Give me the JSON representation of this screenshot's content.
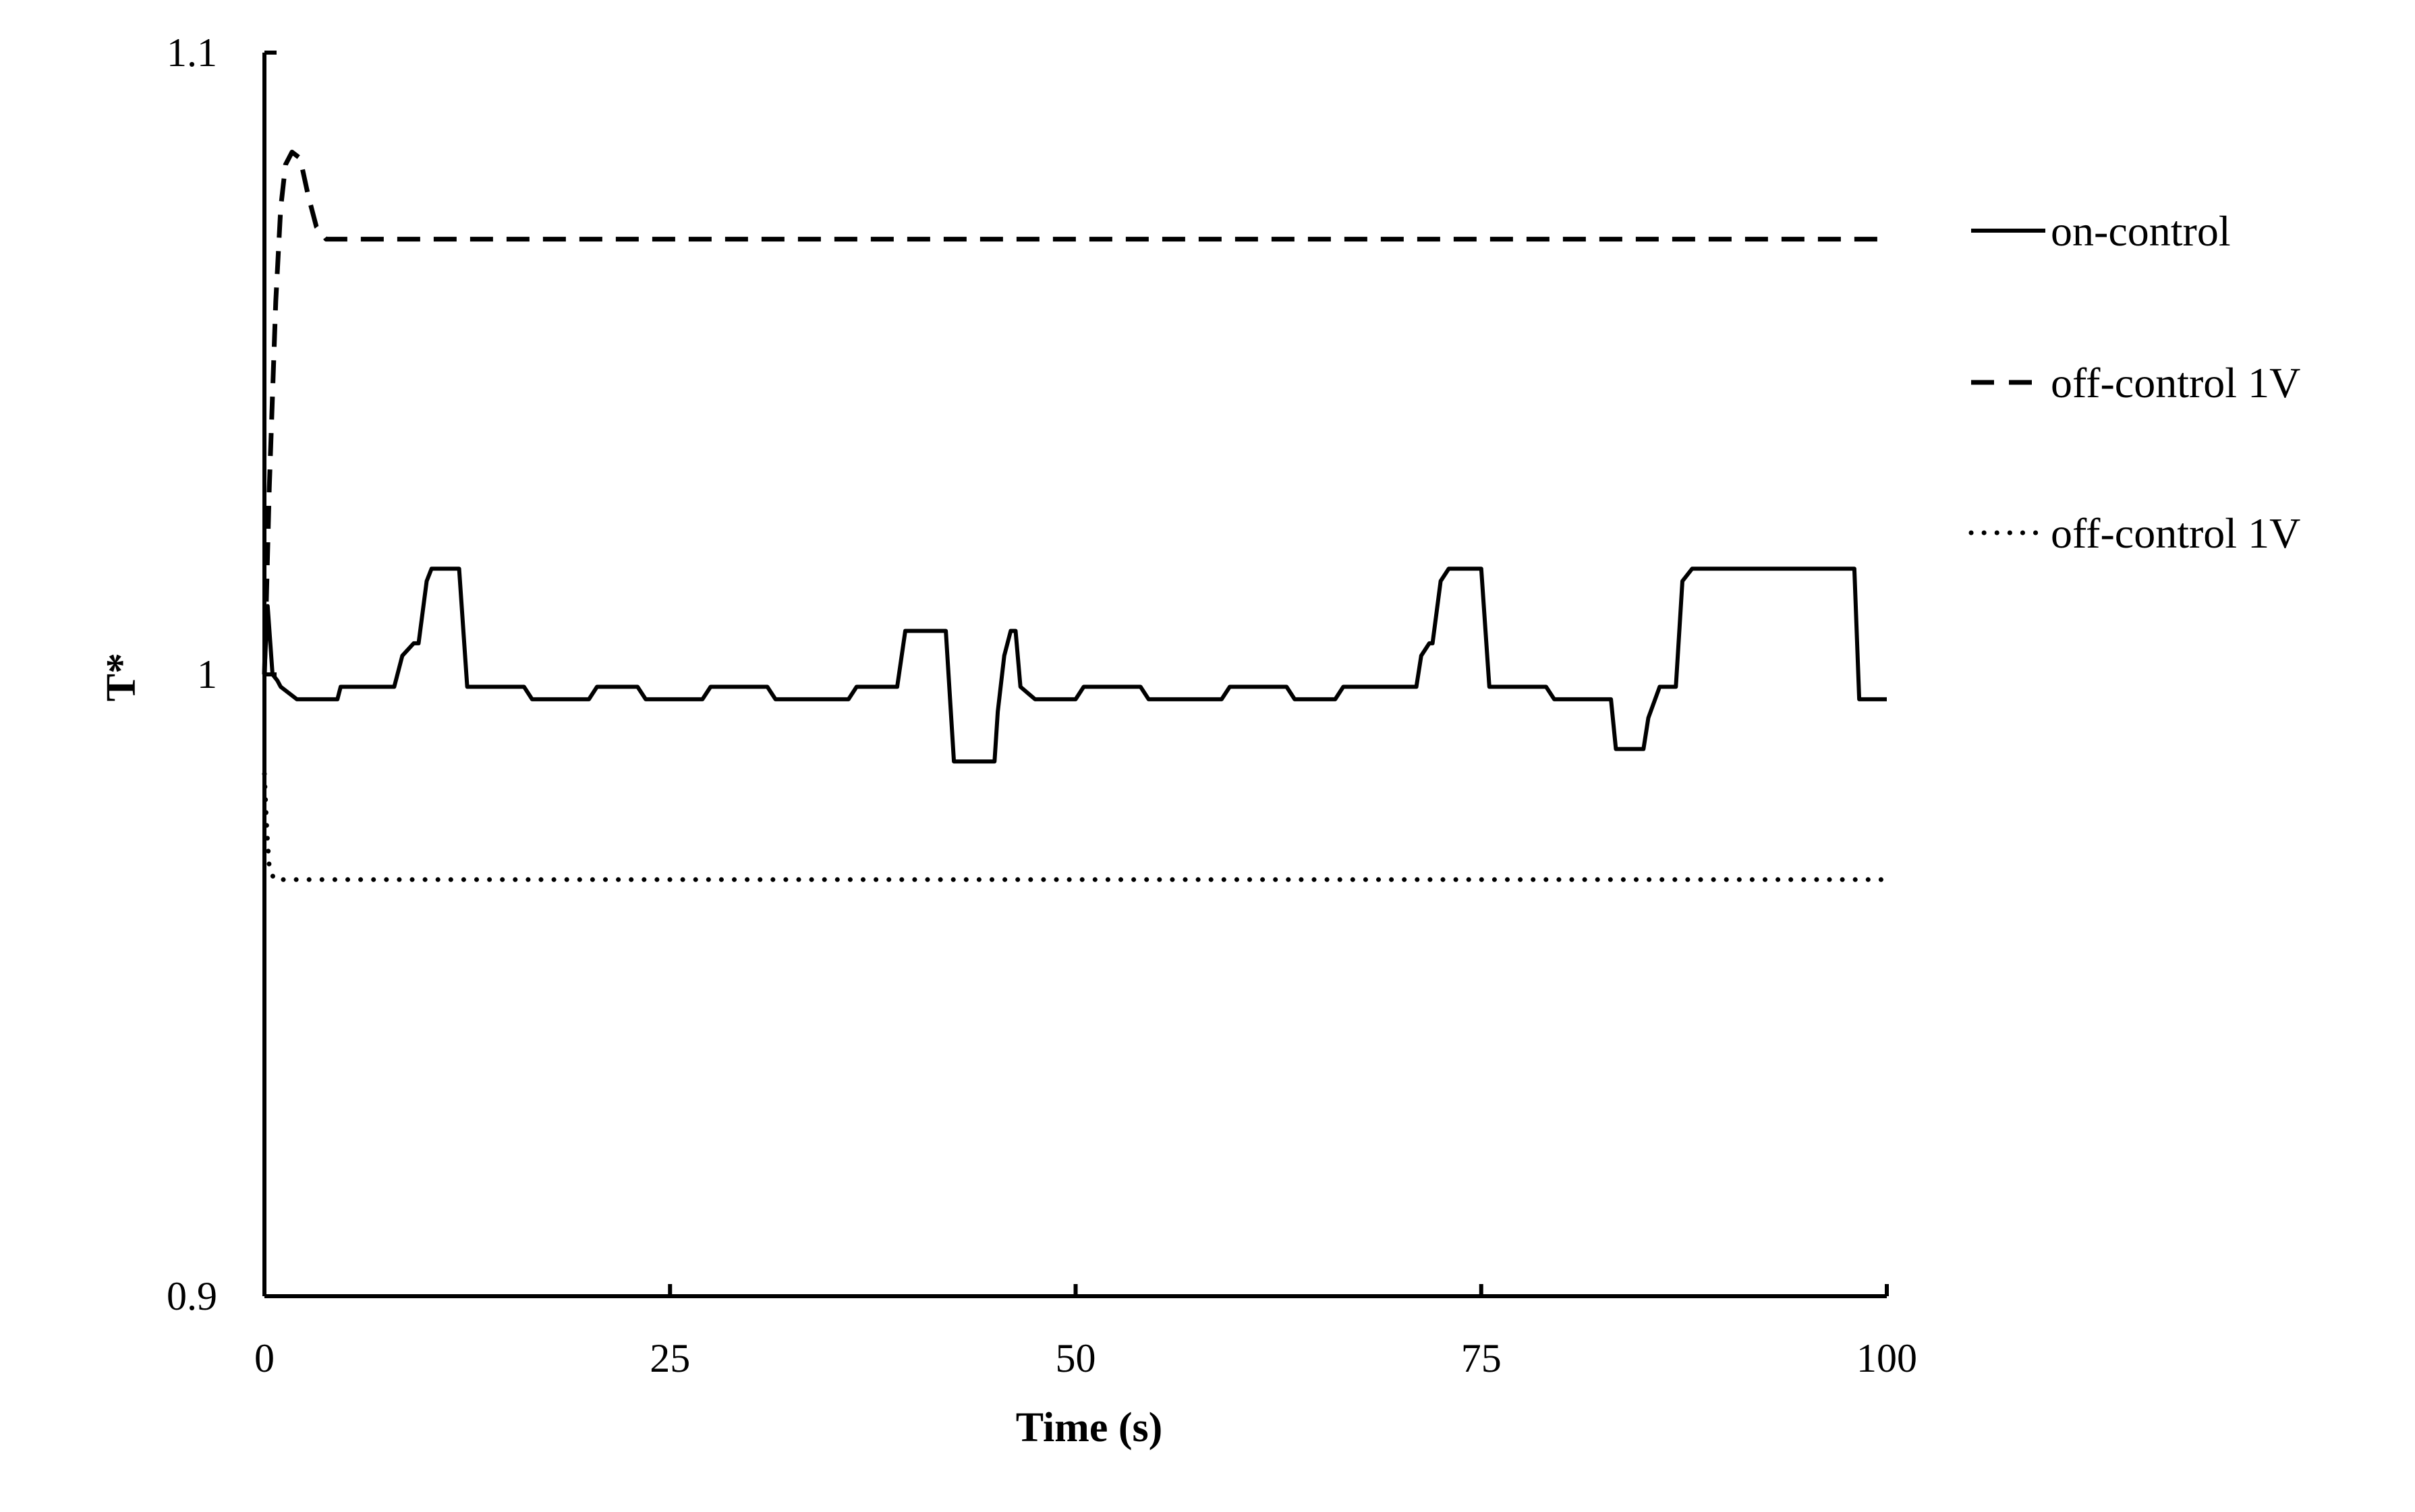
{
  "chart_data": {
    "type": "line",
    "title": "",
    "xlabel": "Time (s)",
    "ylabel": "T*",
    "xlim": [
      0,
      100
    ],
    "ylim": [
      0.9,
      1.1
    ],
    "xticks": [
      0,
      25,
      50,
      75,
      100
    ],
    "xtick_labels": [
      "0",
      "25",
      "50",
      "75",
      "100"
    ],
    "yticks": [
      0.9,
      1.0,
      1.1
    ],
    "ytick_labels": [
      "0.9",
      "1",
      "1.1"
    ],
    "grid": false,
    "legend_position": "right",
    "series": [
      {
        "name": "on-control",
        "style": "solid",
        "color": "#000000",
        "x": [
          0,
          0.2,
          0.5,
          0.8,
          1.0,
          2.0,
          4.5,
          4.7,
          8.0,
          8.5,
          9.2,
          9.5,
          10.0,
          10.3,
          12.0,
          12.5,
          16.0,
          16.5,
          20.0,
          20.5,
          23.0,
          23.5,
          27.0,
          27.5,
          31.0,
          31.5,
          36.0,
          36.5,
          39.0,
          39.5,
          42.0,
          42.5,
          45.0,
          45.2,
          45.6,
          46.0,
          46.3,
          46.6,
          47.5,
          50.0,
          50.5,
          54.0,
          54.5,
          59.0,
          59.5,
          63.0,
          63.5,
          66.0,
          66.5,
          71.0,
          71.3,
          71.8,
          72.0,
          72.5,
          73.0,
          75.0,
          75.5,
          79.0,
          79.5,
          83.0,
          83.3,
          85.0,
          85.3,
          86.0,
          86.3,
          87.0,
          87.4,
          88.0,
          98.0,
          98.3,
          100.0
        ],
        "y": [
          1.0,
          1.011,
          1.0,
          0.999,
          0.998,
          0.996,
          0.996,
          0.998,
          0.998,
          1.003,
          1.005,
          1.005,
          1.015,
          1.017,
          1.017,
          0.998,
          0.998,
          0.996,
          0.996,
          0.998,
          0.998,
          0.996,
          0.996,
          0.998,
          0.998,
          0.996,
          0.996,
          0.998,
          0.998,
          1.007,
          1.007,
          0.986,
          0.986,
          0.994,
          1.003,
          1.007,
          1.007,
          0.998,
          0.996,
          0.996,
          0.998,
          0.998,
          0.996,
          0.996,
          0.998,
          0.998,
          0.996,
          0.996,
          0.998,
          0.998,
          1.003,
          1.005,
          1.005,
          1.015,
          1.017,
          1.017,
          0.998,
          0.998,
          0.996,
          0.996,
          0.988,
          0.988,
          0.993,
          0.998,
          0.998,
          0.998,
          1.015,
          1.017,
          1.017,
          0.996,
          0.996
        ]
      },
      {
        "name": "off-control 1V",
        "style": "dashed",
        "color": "#000000",
        "x": [
          0,
          0.3,
          0.7,
          1.0,
          1.3,
          1.7,
          2.2,
          2.7,
          3.2,
          3.8,
          5.0,
          100.0
        ],
        "y": [
          1.0,
          1.03,
          1.06,
          1.075,
          1.082,
          1.084,
          1.083,
          1.077,
          1.072,
          1.07,
          1.07,
          1.07
        ]
      },
      {
        "name": "off-control 1V",
        "style": "dotted",
        "color": "#000000",
        "x": [
          0,
          0.15,
          0.3,
          0.6,
          1.0,
          100.0
        ],
        "y": [
          0.984,
          0.975,
          0.969,
          0.967,
          0.967,
          0.967
        ]
      }
    ]
  }
}
